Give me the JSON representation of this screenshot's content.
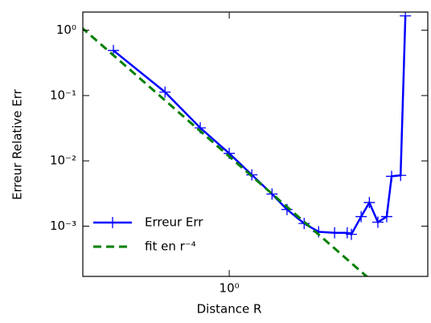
{
  "chart_data": {
    "type": "line",
    "xlabel": "Distance R",
    "ylabel": "Erreur Relative Err",
    "xscale": "log",
    "yscale": "log",
    "xlim": [
      0.324,
      4.61
    ],
    "ylim": [
      0.00017,
      1.9
    ],
    "xticks": [
      {
        "value": 1,
        "label": "10⁰"
      }
    ],
    "yticks": [
      {
        "value": 1,
        "label": "10⁰"
      },
      {
        "value": 0.1,
        "label": "10⁻¹"
      },
      {
        "value": 0.01,
        "label": "10⁻²"
      },
      {
        "value": 0.001,
        "label": "10⁻³"
      }
    ],
    "legend": "lower left",
    "series": [
      {
        "name": "Erreur Err",
        "color": "#0000ff",
        "marker": "+",
        "linestyle": "solid",
        "x": [
          0.41,
          0.61,
          0.8,
          1.0,
          1.19,
          1.39,
          1.56,
          1.78,
          1.99,
          2.25,
          2.48,
          2.56,
          2.76,
          2.94,
          3.14,
          3.36,
          3.49,
          3.74,
          3.88
        ],
        "values": [
          0.49,
          0.113,
          0.032,
          0.013,
          0.0061,
          0.0031,
          0.0018,
          0.0011,
          0.00082,
          0.00079,
          0.00079,
          0.00075,
          0.0014,
          0.0023,
          0.00115,
          0.0014,
          0.0058,
          0.006,
          1.66
        ]
      },
      {
        "name": "fit en r⁻⁴",
        "color": "#008000",
        "marker": null,
        "linestyle": "dashed",
        "x": [
          0.32,
          2.9
        ],
        "values": [
          1.116,
          0.000165
        ]
      }
    ]
  }
}
